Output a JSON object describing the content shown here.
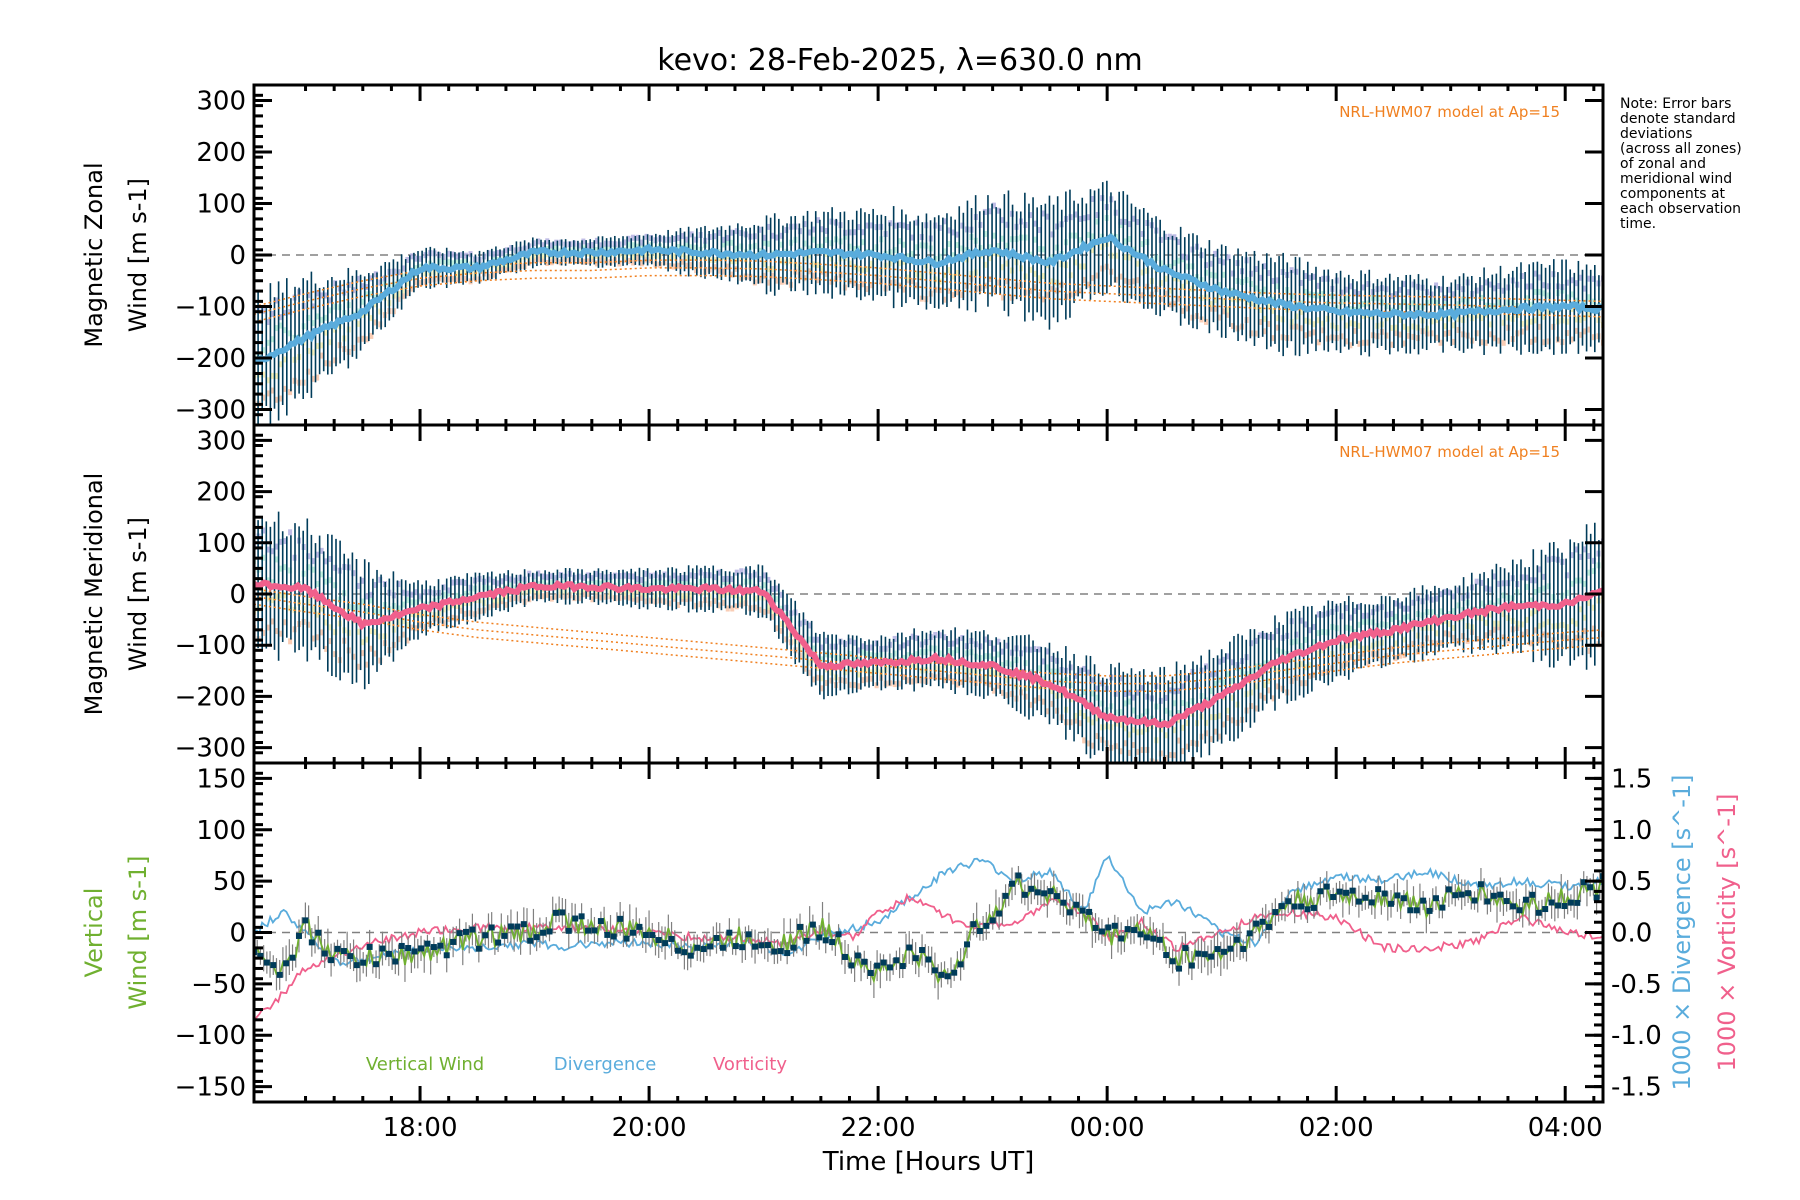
{
  "title": "kevo: 28-Feb-2025, λ=630.0 nm",
  "note_lines": [
    "Note: Error bars",
    "denote standard",
    "deviations",
    "(across all zones)",
    "of zonal and",
    "meridional wind",
    "components at",
    "each observation",
    "time."
  ],
  "model_label": "NRL-HWM07 model at Ap=15",
  "colors": {
    "zonal_mean": "#5aacdc",
    "meridional_mean": "#f0608c",
    "error_bar": "#003c5a",
    "model": "#f08020",
    "zone_lavender": "#b4b0e0",
    "zone_peach": "#f8c4a8",
    "zone_yellow": "#f8f0b0",
    "zone_mint": "#b8f0d8",
    "vertical_wind": "#70b030",
    "divergence": "#5aacdc",
    "vorticity": "#f0608c",
    "zero_line": "#808080"
  },
  "chart_data": [
    {
      "type": "line",
      "panel": "zonal",
      "title": "",
      "ylabel": "Magnetic Zonal Wind [m s^-1]",
      "ylabel_lines": [
        "Magnetic Zonal",
        "Wind [m s",
        "-1",
        "]"
      ],
      "xlabel": "",
      "ylim": [
        -330,
        330
      ],
      "yticks": [
        -300,
        -200,
        -100,
        0,
        100,
        200,
        300
      ],
      "annotation": "NRL-HWM07 model at Ap=15",
      "x": [
        16.55,
        17.0,
        17.5,
        18.0,
        18.5,
        19.0,
        19.5,
        20.0,
        20.5,
        21.0,
        21.5,
        22.0,
        22.5,
        23.0,
        23.5,
        24.0,
        24.5,
        25.0,
        25.5,
        26.0,
        26.5,
        27.0,
        27.5,
        28.0,
        28.33
      ],
      "series": [
        {
          "name": "Mean zonal wind",
          "values": [
            -210,
            -160,
            -110,
            -25,
            -25,
            5,
            5,
            10,
            5,
            0,
            5,
            0,
            -15,
            10,
            -15,
            35,
            -30,
            -70,
            -95,
            -110,
            -115,
            -115,
            -105,
            -100,
            -105
          ]
        },
        {
          "name": "Error bar half-width",
          "values": [
            120,
            110,
            75,
            35,
            30,
            25,
            25,
            30,
            45,
            65,
            75,
            80,
            90,
            100,
            110,
            95,
            85,
            80,
            85,
            75,
            70,
            65,
            75,
            80,
            75
          ]
        },
        {
          "name": "NRL-HWM07 model",
          "values": [
            -100,
            -75,
            -50,
            -30,
            -20,
            -15,
            -15,
            -10,
            -10,
            -12,
            -18,
            -25,
            -35,
            -45,
            -55,
            -60,
            -65,
            -70,
            -75,
            -78,
            -80,
            -82,
            -85,
            -88,
            -90
          ]
        }
      ]
    },
    {
      "type": "line",
      "panel": "meridional",
      "ylabel": "Magnetic Meridional Wind [m s^-1]",
      "ylabel_lines": [
        "Magnetic Meridional",
        "Wind [m s",
        "-1",
        "]"
      ],
      "xlabel": "",
      "ylim": [
        -330,
        330
      ],
      "yticks": [
        -300,
        -200,
        -100,
        0,
        100,
        200,
        300
      ],
      "annotation": "NRL-HWM07 model at Ap=15",
      "x": [
        16.55,
        17.0,
        17.5,
        18.0,
        18.5,
        19.0,
        19.5,
        20.0,
        20.5,
        21.0,
        21.5,
        22.0,
        22.5,
        23.0,
        23.5,
        24.0,
        24.5,
        25.0,
        25.5,
        26.0,
        26.5,
        27.0,
        27.5,
        28.0,
        28.33
      ],
      "series": [
        {
          "name": "Mean meridional wind",
          "values": [
            20,
            10,
            -60,
            -30,
            -5,
            15,
            15,
            10,
            10,
            5,
            -140,
            -135,
            -125,
            -140,
            -175,
            -240,
            -255,
            -200,
            -130,
            -90,
            -70,
            -45,
            -25,
            -20,
            5
          ]
        },
        {
          "name": "Error bar half-width",
          "values": [
            130,
            120,
            110,
            50,
            40,
            30,
            30,
            35,
            40,
            45,
            60,
            50,
            55,
            60,
            75,
            90,
            95,
            90,
            80,
            70,
            65,
            60,
            80,
            110,
            130
          ]
        },
        {
          "name": "NRL-HWM07 model",
          "values": [
            10,
            -5,
            -20,
            -40,
            -55,
            -65,
            -75,
            -85,
            -95,
            -105,
            -115,
            -125,
            -135,
            -145,
            -155,
            -160,
            -160,
            -150,
            -135,
            -120,
            -105,
            -95,
            -85,
            -75,
            -70
          ]
        }
      ]
    },
    {
      "type": "line",
      "panel": "vertical",
      "ylabel": "Vertical Wind [m s^-1]",
      "ylabel_lines": [
        "Vertical",
        "Wind [m s",
        "-1",
        "]"
      ],
      "y2label_div": "1000 × Divergence [s^-1]",
      "y2label_vor": "1000 × Vorticity [s^-1]",
      "xlabel": "Time [Hours UT]",
      "ylim": [
        -165,
        165
      ],
      "yticks": [
        -150,
        -100,
        -50,
        0,
        50,
        100,
        150
      ],
      "y2lim": [
        -1.65,
        1.65
      ],
      "y2ticks": [
        -1.5,
        -1.0,
        -0.5,
        0.0,
        0.5,
        1.0,
        1.5
      ],
      "xticks": [
        "18:00",
        "20:00",
        "22:00",
        "00:00",
        "02:00",
        "04:00"
      ],
      "xtick_hours": [
        18,
        20,
        22,
        24,
        26,
        28
      ],
      "xlim": [
        16.55,
        28.33
      ],
      "legend": [
        {
          "label": "Vertical Wind",
          "color": "#70b030"
        },
        {
          "label": "Divergence",
          "color": "#5aacdc"
        },
        {
          "label": "Vorticity",
          "color": "#f0608c"
        }
      ],
      "x": [
        16.55,
        16.8,
        17.0,
        17.3,
        17.6,
        18.0,
        18.5,
        19.0,
        19.2,
        19.5,
        20.0,
        20.4,
        20.8,
        21.2,
        21.5,
        21.8,
        22.0,
        22.3,
        22.6,
        22.9,
        23.2,
        23.5,
        23.8,
        24.0,
        24.3,
        24.6,
        25.0,
        25.3,
        25.6,
        26.0,
        26.4,
        26.8,
        27.2,
        27.6,
        28.0,
        28.33
      ],
      "series": [
        {
          "name": "Vertical Wind",
          "values": [
            -10,
            -40,
            5,
            -25,
            -25,
            -20,
            -5,
            0,
            15,
            5,
            0,
            -15,
            -5,
            -10,
            5,
            -25,
            -40,
            -20,
            -45,
            10,
            45,
            40,
            15,
            -5,
            5,
            -25,
            -20,
            0,
            30,
            35,
            35,
            25,
            40,
            25,
            35,
            45
          ]
        },
        {
          "name": "Divergence",
          "values": [
            0.0,
            0.2,
            0.0,
            -0.3,
            -0.25,
            -0.15,
            -0.15,
            -0.1,
            -0.15,
            -0.1,
            -0.1,
            -0.15,
            -0.1,
            -0.2,
            -0.05,
            0.05,
            0.1,
            0.35,
            0.6,
            0.7,
            0.5,
            0.6,
            0.2,
            0.75,
            0.2,
            0.3,
            0.0,
            -0.1,
            0.4,
            0.55,
            0.5,
            0.6,
            0.45,
            0.5,
            0.45,
            0.5
          ]
        },
        {
          "name": "Vorticity",
          "values": [
            -0.85,
            -0.6,
            -0.35,
            -0.2,
            -0.1,
            0.0,
            0.05,
            0.05,
            0.05,
            0.05,
            0.0,
            -0.05,
            -0.05,
            -0.1,
            0.0,
            -0.05,
            0.2,
            0.35,
            0.15,
            0.05,
            0.1,
            0.3,
            0.2,
            -0.05,
            0.1,
            -0.15,
            0.0,
            0.15,
            0.2,
            0.15,
            -0.15,
            -0.15,
            -0.1,
            0.15,
            0.0,
            -0.05
          ]
        }
      ]
    }
  ]
}
